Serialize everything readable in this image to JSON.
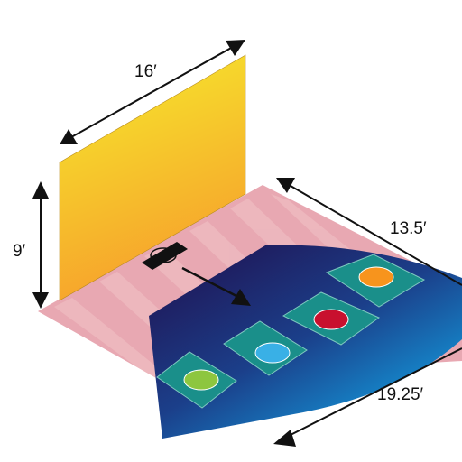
{
  "diagram": {
    "dimensions": {
      "wall_width": "16′",
      "wall_height": "9′",
      "floor_depth": "13.5′",
      "fan_length": "19.25′"
    },
    "colors": {
      "wall_top": "#f5ec2c",
      "wall_bottom": "#f7a12c",
      "floor": "#e8a8b2",
      "floor_stripe": "#eebcbf",
      "fan_dark": "#1f1a5c",
      "fan_light": "#12a8e8",
      "pad": "#1a8f8a",
      "pad_border": "#7fc8c0",
      "spot_green": "#8dc63f",
      "spot_blue": "#39b0e6",
      "spot_red": "#c8102e",
      "spot_orange": "#f7941d",
      "arrow": "#111111"
    },
    "spots": [
      {
        "name": "green",
        "color_key": "spot_green"
      },
      {
        "name": "blue",
        "color_key": "spot_blue"
      },
      {
        "name": "red",
        "color_key": "spot_red"
      },
      {
        "name": "orange",
        "color_key": "spot_orange"
      }
    ]
  }
}
